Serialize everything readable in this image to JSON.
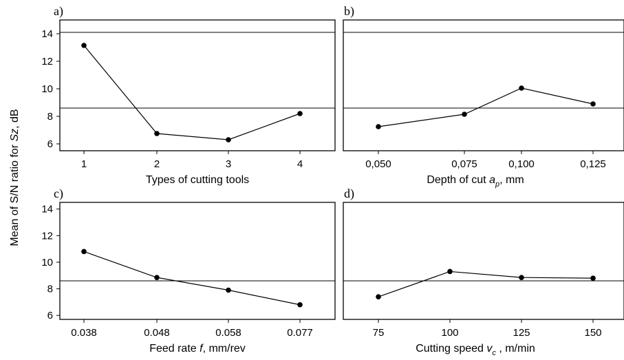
{
  "figure": {
    "ylabel": "Mean of S/N ratio for Sz, dB"
  },
  "chart_data": [
    {
      "type": "line",
      "panel_tag": "a)",
      "xlabel": "Types of cutting tools",
      "categories": [
        "1",
        "2",
        "3",
        "4"
      ],
      "values": [
        13.15,
        6.75,
        6.3,
        8.2
      ],
      "ylim": [
        5.5,
        15
      ],
      "yticks": [
        6,
        8,
        10,
        12,
        14
      ],
      "show_y_ticks": true,
      "reference_lines": [
        14.1,
        8.6
      ]
    },
    {
      "type": "line",
      "panel_tag": "b)",
      "xlabel": "Depth of cut a_p, mm",
      "categories": [
        "0,050",
        "0,075",
        "0,100",
        "0,125"
      ],
      "values": [
        7.25,
        8.15,
        10.05,
        8.9
      ],
      "ylim": [
        5.5,
        15
      ],
      "yticks": [
        6,
        8,
        10,
        12,
        14
      ],
      "show_y_ticks": false,
      "reference_lines": [
        14.1,
        8.6
      ]
    },
    {
      "type": "line",
      "panel_tag": "c)",
      "xlabel": "Feed rate f, mm/rev",
      "categories": [
        "0.038",
        "0.048",
        "0.058",
        "0.077"
      ],
      "values": [
        10.8,
        8.85,
        7.9,
        6.8
      ],
      "ylim": [
        5.7,
        14.5
      ],
      "yticks": [
        6,
        8,
        10,
        12,
        14
      ],
      "show_y_ticks": true,
      "reference_lines": [
        8.6
      ]
    },
    {
      "type": "line",
      "panel_tag": "d)",
      "xlabel": "Cutting speed v_c , m/min",
      "categories": [
        "75",
        "100",
        "125",
        "150"
      ],
      "values": [
        7.4,
        9.3,
        8.85,
        8.8
      ],
      "ylim": [
        5.7,
        14.5
      ],
      "yticks": [
        6,
        8,
        10,
        12,
        14
      ],
      "show_y_ticks": false,
      "reference_lines": [
        8.6
      ]
    }
  ]
}
